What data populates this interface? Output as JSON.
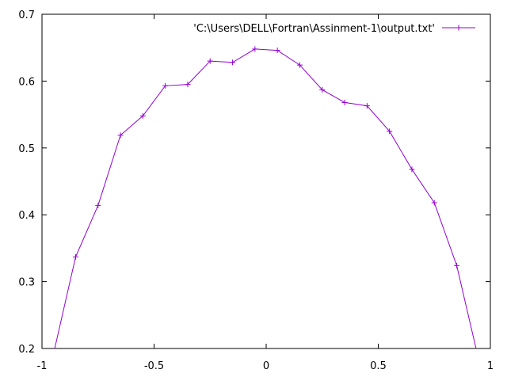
{
  "chart_data": {
    "type": "line",
    "title": "",
    "xlabel": "",
    "ylabel": "",
    "xlim": [
      -1,
      1
    ],
    "ylim": [
      0.2,
      0.7
    ],
    "x_ticks": [
      "-1",
      "-0.5",
      "0",
      "0.5",
      "1"
    ],
    "x_tick_values": [
      -1,
      -0.5,
      0,
      0.5,
      1
    ],
    "y_ticks": [
      "0.2",
      "0.3",
      "0.4",
      "0.5",
      "0.6",
      "0.7"
    ],
    "y_tick_values": [
      0.2,
      0.3,
      0.4,
      0.5,
      0.6,
      0.7
    ],
    "grid": false,
    "legend_position": "top-right",
    "series": [
      {
        "name": "'C:\\Users\\DELL\\Fortran\\Assinment-1\\output.txt'",
        "color": "#9400d3",
        "marker": "plus",
        "x": [
          -0.95,
          -0.85,
          -0.75,
          -0.65,
          -0.55,
          -0.45,
          -0.35,
          -0.25,
          -0.15,
          -0.05,
          0.05,
          0.15,
          0.25,
          0.35,
          0.45,
          0.55,
          0.65,
          0.75,
          0.85,
          0.95
        ],
        "y": [
          0.19,
          0.337,
          0.414,
          0.519,
          0.548,
          0.593,
          0.595,
          0.63,
          0.628,
          0.648,
          0.646,
          0.624,
          0.587,
          0.568,
          0.563,
          0.525,
          0.468,
          0.418,
          0.324,
          0.18
        ]
      }
    ]
  }
}
